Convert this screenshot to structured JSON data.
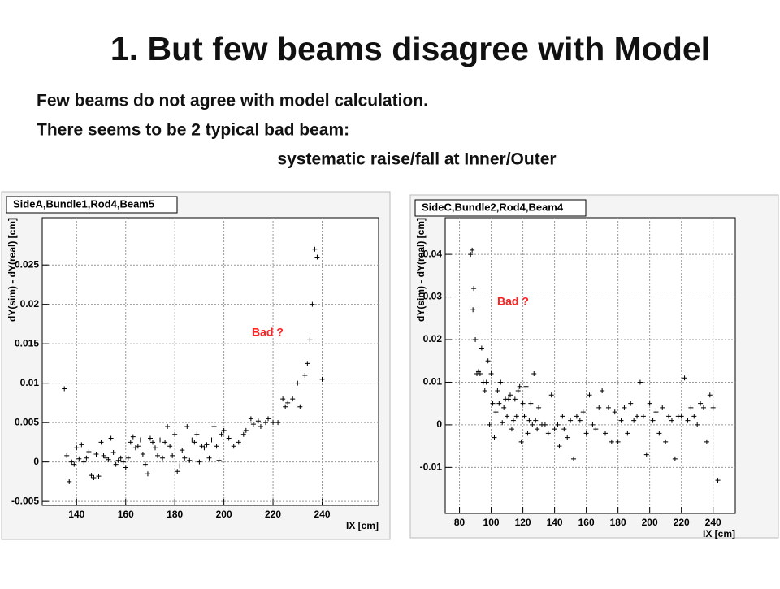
{
  "title": "1. But few beams disagree with Model",
  "text": [
    "Few beams do not agree with model calculation.",
    "There seems to be 2 typical bad beam:",
    "systematic raise/fall at Inner/Outer"
  ],
  "chart_data": [
    {
      "type": "scatter",
      "title": "SideA,Bundle1,Rod4,Beam5",
      "x_label": "IX [cm]",
      "y_label": "dY(sim) - dY(real) [cm]",
      "annotation": "Bad ?",
      "annotation_color": "#ff2020",
      "color": "#000000",
      "grid": true,
      "xlim": [
        126,
        263
      ],
      "ylim": [
        -0.0055,
        0.031
      ],
      "xticks": [
        140,
        160,
        180,
        200,
        220,
        240
      ],
      "yticks": [
        -0.005,
        0,
        0.005,
        0.01,
        0.015,
        0.02,
        0.025
      ],
      "x": [
        135,
        136,
        137,
        138,
        139,
        140,
        141,
        142,
        143,
        144,
        145,
        146,
        147,
        148,
        149,
        150,
        151,
        152,
        153,
        154,
        155,
        156,
        157,
        158,
        159,
        160,
        161,
        162,
        163,
        164,
        165,
        166,
        167,
        168,
        169,
        170,
        171,
        172,
        173,
        174,
        175,
        176,
        177,
        178,
        179,
        180,
        181,
        182,
        183,
        184,
        185,
        186,
        187,
        188,
        189,
        190,
        191,
        192,
        193,
        194,
        195,
        196,
        197,
        198,
        199,
        200,
        202,
        204,
        206,
        208,
        209,
        211,
        212,
        214,
        215,
        217,
        218,
        220,
        222,
        224,
        225,
        226,
        228,
        230,
        231,
        233,
        234,
        235,
        236,
        237,
        238,
        240
      ],
      "y": [
        0.0093,
        0.0008,
        -0.0025,
        0.0,
        -0.0003,
        0.0018,
        0.0004,
        0.0022,
        0.0,
        0.0005,
        0.0013,
        -0.0017,
        -0.002,
        0.001,
        -0.0018,
        0.0025,
        0.0008,
        0.0005,
        0.0003,
        0.003,
        0.0012,
        -0.0003,
        0.0002,
        0.0005,
        0.0,
        -0.0007,
        0.0005,
        0.0025,
        0.0032,
        0.0018,
        0.002,
        0.0028,
        0.001,
        -0.0003,
        -0.0015,
        0.003,
        0.0025,
        0.0018,
        0.0008,
        0.0028,
        0.0005,
        0.0025,
        0.0045,
        0.002,
        0.0008,
        0.0035,
        -0.0012,
        -0.0005,
        0.0015,
        0.0005,
        0.0045,
        0.0002,
        0.0028,
        0.0025,
        0.0035,
        0.0,
        0.002,
        0.0018,
        0.0022,
        0.0005,
        0.0028,
        0.0045,
        0.002,
        0.0002,
        0.0035,
        0.004,
        0.003,
        0.002,
        0.0025,
        0.0035,
        0.004,
        0.0055,
        0.0048,
        0.0052,
        0.0045,
        0.005,
        0.0055,
        0.005,
        0.005,
        0.008,
        0.007,
        0.0075,
        0.008,
        0.01,
        0.007,
        0.011,
        0.0125,
        0.0155,
        0.02,
        0.027,
        0.026,
        0.0105
      ]
    },
    {
      "type": "scatter",
      "title": "SideC,Bundle2,Rod4,Beam4",
      "x_label": "IX [cm]",
      "y_label": "dY(sim) - dY(real) [cm]",
      "annotation": "Bad ?",
      "annotation_color": "#ff2020",
      "color": "#000000",
      "grid": true,
      "xlim": [
        71,
        254
      ],
      "ylim": [
        -0.0208,
        0.0486
      ],
      "xticks": [
        80,
        100,
        120,
        140,
        160,
        180,
        200,
        220,
        240
      ],
      "yticks": [
        -0.01,
        0,
        0.01,
        0.02,
        0.03,
        0.04
      ],
      "x": [
        87,
        88,
        88.5,
        89,
        90,
        91,
        92,
        93,
        94,
        95,
        96,
        97,
        98,
        99,
        100,
        101,
        102,
        103,
        104,
        105,
        106,
        107,
        108,
        109,
        110,
        111,
        112,
        113,
        114,
        115,
        116,
        117,
        118,
        119,
        120,
        121,
        122,
        123,
        124,
        125,
        126,
        127,
        128,
        129,
        130,
        132,
        134,
        136,
        138,
        140,
        142,
        143,
        145,
        146,
        148,
        150,
        152,
        154,
        156,
        158,
        160,
        162,
        164,
        166,
        168,
        170,
        172,
        174,
        176,
        178,
        180,
        182,
        184,
        186,
        188,
        190,
        192,
        194,
        196,
        198,
        200,
        202,
        204,
        206,
        208,
        210,
        212,
        214,
        216,
        218,
        220,
        222,
        224,
        226,
        228,
        230,
        232,
        234,
        236,
        238,
        240,
        243
      ],
      "y": [
        0.04,
        0.041,
        0.027,
        0.032,
        0.02,
        0.012,
        0.0125,
        0.012,
        0.018,
        0.01,
        0.008,
        0.01,
        0.015,
        0.0,
        0.012,
        0.005,
        -0.003,
        0.003,
        0.008,
        0.005,
        0.01,
        0.0005,
        0.004,
        0.006,
        0.002,
        0.006,
        0.007,
        -0.001,
        0.001,
        0.006,
        0.002,
        0.008,
        0.009,
        -0.004,
        0.005,
        0.002,
        0.009,
        -0.002,
        0.001,
        0.005,
        0.0,
        0.012,
        0.001,
        -0.001,
        0.004,
        0.0,
        0.0,
        -0.002,
        0.007,
        -0.001,
        0.0,
        -0.005,
        0.002,
        -0.001,
        -0.003,
        0.001,
        -0.008,
        0.002,
        0.001,
        0.003,
        -0.002,
        0.007,
        0.0,
        -0.001,
        0.004,
        0.008,
        -0.002,
        0.004,
        -0.004,
        0.003,
        -0.004,
        0.001,
        0.004,
        -0.002,
        0.005,
        0.001,
        0.002,
        0.01,
        0.002,
        -0.007,
        0.005,
        0.001,
        0.003,
        -0.002,
        0.004,
        -0.004,
        0.002,
        0.001,
        -0.008,
        0.002,
        0.002,
        0.011,
        0.001,
        0.004,
        0.002,
        0.0,
        0.005,
        0.004,
        -0.004,
        0.007,
        0.004,
        -0.013
      ]
    }
  ]
}
